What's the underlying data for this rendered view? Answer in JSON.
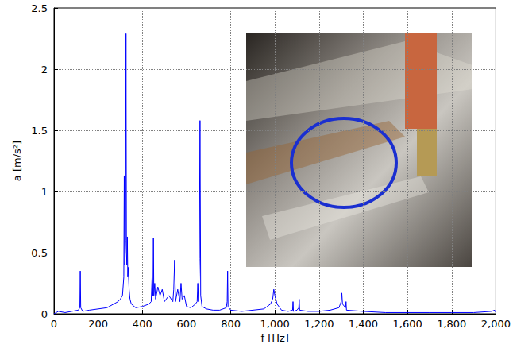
{
  "chart_data": {
    "type": "line",
    "xlabel": "f [Hz]",
    "ylabel": "a [m/s²]",
    "x": [
      0,
      20,
      50,
      80,
      110,
      117,
      119,
      121,
      130,
      160,
      200,
      240,
      270,
      290,
      300,
      310,
      316,
      318,
      320,
      324,
      326,
      328,
      330,
      332,
      334,
      336,
      340,
      344,
      350,
      370,
      400,
      430,
      440,
      444,
      448,
      450,
      452,
      456,
      460,
      470,
      480,
      490,
      500,
      520,
      538,
      542,
      546,
      550,
      560,
      570,
      575,
      580,
      590,
      600,
      620,
      640,
      648,
      651,
      654,
      658,
      661,
      664,
      670,
      690,
      720,
      750,
      780,
      784,
      786,
      788,
      800,
      850,
      900,
      950,
      980,
      990,
      995,
      1000,
      1010,
      1030,
      1060,
      1080,
      1082,
      1084,
      1100,
      1108,
      1110,
      1112,
      1150,
      1200,
      1250,
      1290,
      1300,
      1303,
      1306,
      1320,
      1322,
      1324,
      1400,
      1500,
      1600,
      1700,
      1800,
      1900,
      1980,
      1995,
      2000
    ],
    "values": [
      0,
      0.02,
      0.01,
      0.02,
      0.03,
      0.05,
      0.35,
      0.05,
      0.02,
      0.03,
      0.04,
      0.05,
      0.08,
      0.1,
      0.12,
      0.15,
      0.3,
      1.13,
      0.4,
      0.6,
      2.29,
      0.5,
      0.4,
      0.63,
      0.3,
      0.38,
      0.2,
      0.12,
      0.08,
      0.05,
      0.06,
      0.08,
      0.1,
      0.3,
      0.15,
      0.62,
      0.15,
      0.25,
      0.12,
      0.22,
      0.15,
      0.2,
      0.1,
      0.15,
      0.1,
      0.2,
      0.44,
      0.1,
      0.2,
      0.1,
      0.25,
      0.12,
      0.15,
      0.06,
      0.05,
      0.08,
      0.1,
      0.25,
      0.1,
      0.45,
      1.58,
      0.15,
      0.06,
      0.04,
      0.03,
      0.03,
      0.05,
      0.1,
      0.35,
      0.06,
      0.03,
      0.02,
      0.03,
      0.04,
      0.08,
      0.12,
      0.2,
      0.15,
      0.08,
      0.03,
      0.02,
      0.03,
      0.1,
      0.02,
      0.03,
      0.05,
      0.12,
      0.03,
      0.02,
      0.02,
      0.03,
      0.05,
      0.1,
      0.17,
      0.08,
      0.05,
      0.1,
      0.03,
      0.02,
      0.01,
      0.01,
      0.01,
      0.01,
      0.01,
      0.02,
      0.03,
      0.01
    ],
    "color": "#0000ff",
    "xlim": [
      0,
      2000
    ],
    "xticks": [
      0,
      200,
      400,
      600,
      800,
      1000,
      1200,
      1400,
      1600,
      1800,
      2000
    ],
    "ylim": [
      0,
      2.5
    ],
    "yticks": [
      0,
      0.5,
      1,
      1.5,
      2,
      2.5
    ],
    "grid": true
  }
}
